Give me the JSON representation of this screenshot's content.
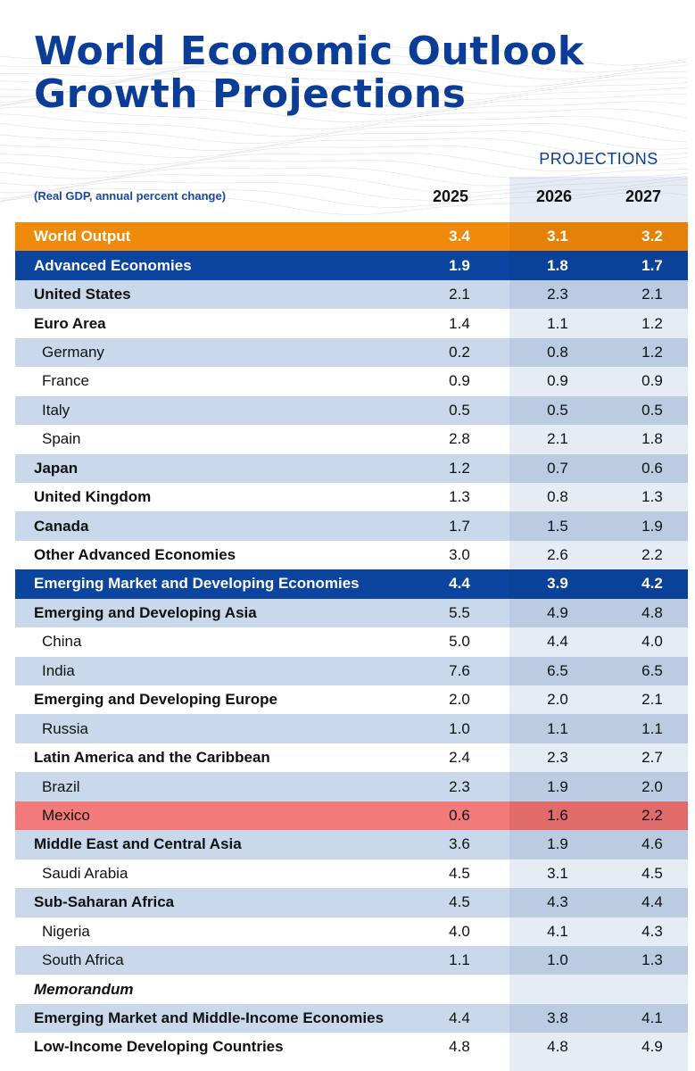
{
  "title": {
    "line1": "World Economic Outlook",
    "line2": "Growth Projections"
  },
  "projections_label": "PROJECTIONS",
  "subtitle": "(Real GDP, annual percent change)",
  "years": [
    "2025",
    "2026",
    "2027"
  ],
  "colors": {
    "title": "#0b3d96",
    "world_row": "#f08a0a",
    "group_row": "#0b45a0",
    "stripe": "#c9d8ea",
    "highlight": "#f27a7a"
  },
  "rows": [
    {
      "name": "World Output",
      "type": "world",
      "v": [
        "3.4",
        "3.1",
        "3.2"
      ]
    },
    {
      "name": "Advanced Economies",
      "type": "group",
      "v": [
        "1.9",
        "1.8",
        "1.7"
      ]
    },
    {
      "name": "United States",
      "type": "main",
      "v": [
        "2.1",
        "2.3",
        "2.1"
      ]
    },
    {
      "name": "Euro Area",
      "type": "main",
      "v": [
        "1.4",
        "1.1",
        "1.2"
      ]
    },
    {
      "name": "Germany",
      "type": "sub",
      "v": [
        "0.2",
        "0.8",
        "1.2"
      ]
    },
    {
      "name": "France",
      "type": "sub",
      "v": [
        "0.9",
        "0.9",
        "0.9"
      ]
    },
    {
      "name": "Italy",
      "type": "sub",
      "v": [
        "0.5",
        "0.5",
        "0.5"
      ]
    },
    {
      "name": "Spain",
      "type": "sub",
      "v": [
        "2.8",
        "2.1",
        "1.8"
      ]
    },
    {
      "name": "Japan",
      "type": "main",
      "v": [
        "1.2",
        "0.7",
        "0.6"
      ]
    },
    {
      "name": "United Kingdom",
      "type": "main",
      "v": [
        "1.3",
        "0.8",
        "1.3"
      ]
    },
    {
      "name": "Canada",
      "type": "main",
      "v": [
        "1.7",
        "1.5",
        "1.9"
      ]
    },
    {
      "name": "Other Advanced Economies",
      "type": "main",
      "v": [
        "3.0",
        "2.6",
        "2.2"
      ]
    },
    {
      "name": "Emerging Market and Developing Economies",
      "type": "group",
      "v": [
        "4.4",
        "3.9",
        "4.2"
      ]
    },
    {
      "name": "Emerging and Developing Asia",
      "type": "main",
      "v": [
        "5.5",
        "4.9",
        "4.8"
      ]
    },
    {
      "name": "China",
      "type": "sub",
      "v": [
        "5.0",
        "4.4",
        "4.0"
      ]
    },
    {
      "name": "India",
      "type": "sub",
      "v": [
        "7.6",
        "6.5",
        "6.5"
      ]
    },
    {
      "name": "Emerging and Developing Europe",
      "type": "main",
      "v": [
        "2.0",
        "2.0",
        "2.1"
      ]
    },
    {
      "name": "Russia",
      "type": "sub",
      "v": [
        "1.0",
        "1.1",
        "1.1"
      ]
    },
    {
      "name": "Latin America and the Caribbean",
      "type": "main",
      "v": [
        "2.4",
        "2.3",
        "2.7"
      ]
    },
    {
      "name": "Brazil",
      "type": "sub",
      "v": [
        "2.3",
        "1.9",
        "2.0"
      ]
    },
    {
      "name": "Mexico",
      "type": "sub",
      "highlight": true,
      "v": [
        "0.6",
        "1.6",
        "2.2"
      ]
    },
    {
      "name": "Middle East and Central Asia",
      "type": "main",
      "v": [
        "3.6",
        "1.9",
        "4.6"
      ]
    },
    {
      "name": "Saudi Arabia",
      "type": "sub",
      "v": [
        "4.5",
        "3.1",
        "4.5"
      ]
    },
    {
      "name": "Sub-Saharan Africa",
      "type": "main",
      "v": [
        "4.5",
        "4.3",
        "4.4"
      ]
    },
    {
      "name": "Nigeria",
      "type": "sub",
      "v": [
        "4.0",
        "4.1",
        "4.3"
      ]
    },
    {
      "name": "South Africa",
      "type": "sub",
      "v": [
        "1.1",
        "1.0",
        "1.3"
      ]
    },
    {
      "name": "Memorandum",
      "type": "memo",
      "v": [
        "",
        "",
        ""
      ]
    },
    {
      "name": "Emerging Market and Middle-Income Economies",
      "type": "main",
      "v": [
        "4.4",
        "3.8",
        "4.1"
      ]
    },
    {
      "name": "Low-Income Developing Countries",
      "type": "main",
      "v": [
        "4.8",
        "4.8",
        "4.9"
      ]
    }
  ]
}
